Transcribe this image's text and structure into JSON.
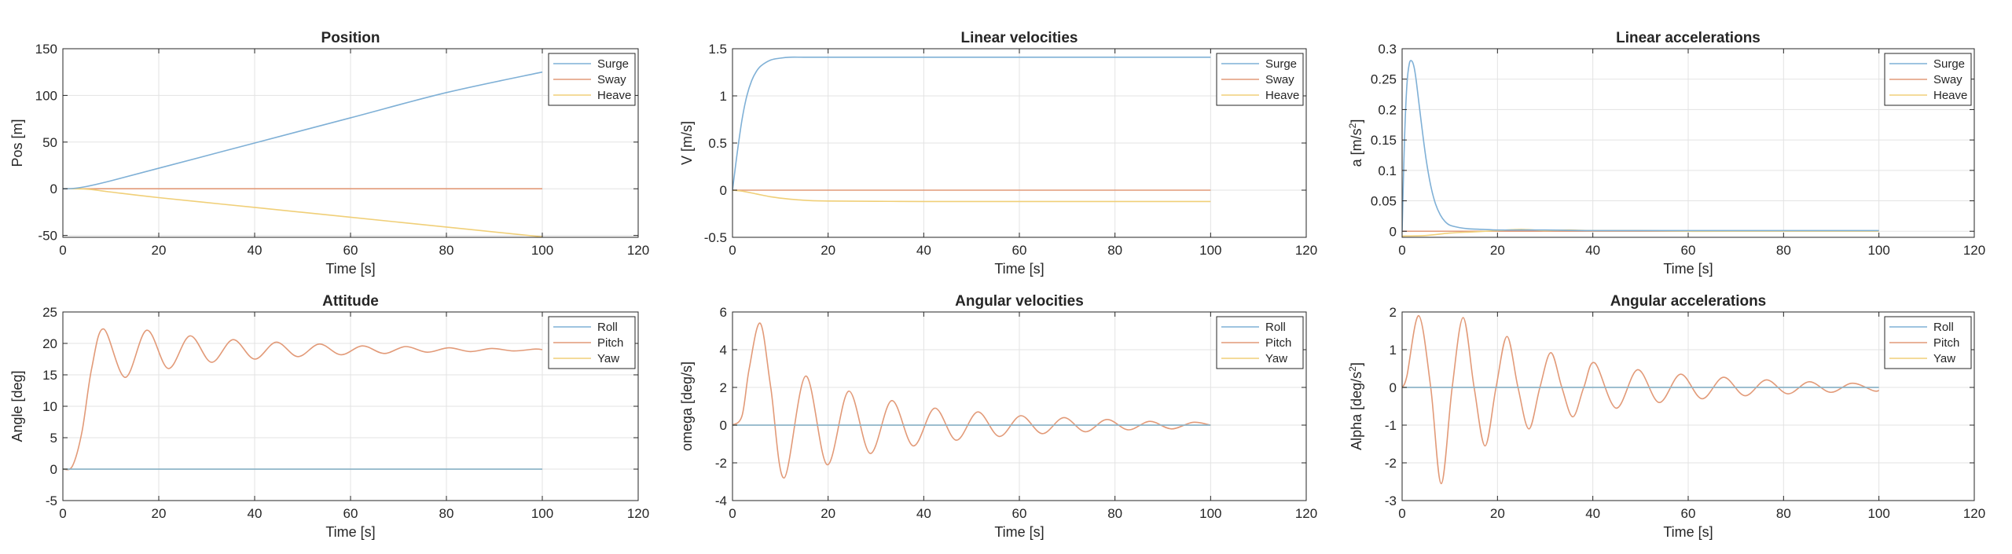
{
  "figure": {
    "colors": {
      "series1": "#0072BD",
      "series2": "#D95319",
      "series3": "#EDB120",
      "grid": "#e3e3e3",
      "axis": "#262626"
    },
    "series_colors_rendered": [
      "#7fb0d6",
      "#e29a78",
      "#f0cf78"
    ]
  },
  "chart_data": [
    {
      "type": "line",
      "title": "Position",
      "xlabel": "Time [s]",
      "ylabel": "Pos [m]",
      "xlim": [
        0,
        120
      ],
      "ylim": [
        -52,
        150
      ],
      "xticks": [
        "0",
        "20",
        "40",
        "60",
        "80",
        "100",
        "120"
      ],
      "yticks": [
        "-50",
        "0",
        "50",
        "100",
        "150"
      ],
      "grid": true,
      "legend_position": "top-right",
      "series": [
        {
          "name": "Surge",
          "x": [
            0,
            2,
            5,
            10,
            20,
            40,
            60,
            80,
            100
          ],
          "y": [
            0,
            0.3,
            2.5,
            8.5,
            22,
            49,
            76,
            103,
            125
          ]
        },
        {
          "name": "Sway",
          "x": [
            0,
            100
          ],
          "y": [
            0,
            0
          ]
        },
        {
          "name": "Heave",
          "x": [
            0,
            5,
            10,
            20,
            40,
            60,
            80,
            100
          ],
          "y": [
            0,
            -0.4,
            -3.5,
            -9.5,
            -20,
            -30.5,
            -41,
            -51.5
          ]
        }
      ]
    },
    {
      "type": "line",
      "title": "Linear velocities",
      "xlabel": "Time [s]",
      "ylabel": "V [m/s]",
      "xlim": [
        0,
        120
      ],
      "ylim": [
        -0.5,
        1.5
      ],
      "xticks": [
        "0",
        "20",
        "40",
        "60",
        "80",
        "100",
        "120"
      ],
      "yticks": [
        "-0.5",
        "0",
        "0.5",
        "1",
        "1.5"
      ],
      "grid": true,
      "legend_position": "top-right",
      "series": [
        {
          "name": "Surge",
          "x": [
            0,
            1,
            2,
            3,
            4,
            5,
            6,
            8,
            10,
            12,
            15,
            20,
            30,
            40,
            60,
            80,
            100
          ],
          "y": [
            0,
            0.4,
            0.75,
            1.0,
            1.16,
            1.26,
            1.32,
            1.38,
            1.4,
            1.41,
            1.41,
            1.41,
            1.41,
            1.41,
            1.41,
            1.41,
            1.41
          ]
        },
        {
          "name": "Sway",
          "x": [
            0,
            100
          ],
          "y": [
            0,
            0
          ]
        },
        {
          "name": "Heave",
          "x": [
            0,
            2,
            5,
            8,
            12,
            16,
            20,
            30,
            40,
            60,
            80,
            100
          ],
          "y": [
            0,
            -0.01,
            -0.04,
            -0.07,
            -0.095,
            -0.11,
            -0.115,
            -0.118,
            -0.12,
            -0.12,
            -0.12,
            -0.12
          ]
        }
      ]
    },
    {
      "type": "line",
      "title": "Linear accelerations",
      "xlabel": "Time [s]",
      "ylabel": "a [m/s²]",
      "xlim": [
        0,
        120
      ],
      "ylim": [
        -0.01,
        0.3
      ],
      "xticks": [
        "0",
        "20",
        "40",
        "60",
        "80",
        "100",
        "120"
      ],
      "yticks": [
        "0",
        "0.05",
        "0.1",
        "0.15",
        "0.2",
        "0.25",
        "0.3"
      ],
      "grid": true,
      "legend_position": "top-right",
      "series": [
        {
          "name": "Surge",
          "x": [
            0,
            0.5,
            1,
            1.5,
            2,
            2.5,
            3,
            4,
            5,
            6,
            7,
            8,
            9,
            10,
            12,
            14,
            17,
            20,
            25,
            30,
            40,
            60,
            100
          ],
          "y": [
            0,
            0.15,
            0.24,
            0.275,
            0.28,
            0.27,
            0.245,
            0.18,
            0.12,
            0.075,
            0.045,
            0.027,
            0.016,
            0.01,
            0.006,
            0.004,
            0.003,
            0.002,
            0.002,
            0.002,
            0.001,
            0.001,
            0.001
          ]
        },
        {
          "name": "Sway",
          "x": [
            0,
            100
          ],
          "y": [
            0,
            0
          ]
        },
        {
          "name": "Heave",
          "x": [
            0,
            5,
            10,
            15,
            20,
            25,
            30,
            35,
            40,
            50,
            60,
            70,
            80,
            90,
            100
          ],
          "y": [
            -0.008,
            -0.007,
            -0.003,
            -0.001,
            0.001,
            0.003,
            0.001,
            0.002,
            0.001,
            0.001,
            0.0,
            0.0,
            0.0,
            0.0,
            0.0
          ]
        }
      ]
    },
    {
      "type": "line",
      "title": "Attitude",
      "xlabel": "Time [s]",
      "ylabel": "Angle [deg]",
      "xlim": [
        0,
        120
      ],
      "ylim": [
        -5,
        25
      ],
      "xticks": [
        "0",
        "20",
        "40",
        "60",
        "80",
        "100",
        "120"
      ],
      "yticks": [
        "-5",
        "0",
        "5",
        "10",
        "15",
        "20",
        "25"
      ],
      "grid": true,
      "legend_position": "top-right",
      "series": [
        {
          "name": "Roll",
          "x": [
            0,
            100
          ],
          "y": [
            0,
            0
          ]
        },
        {
          "name": "Pitch",
          "x": [
            0,
            2,
            4,
            6,
            8.5,
            13,
            17.5,
            22,
            26.5,
            31,
            35.5,
            40,
            44.5,
            49,
            53.5,
            58,
            62.5,
            67,
            71.5,
            76,
            80.5,
            85,
            89.5,
            94,
            98.5,
            100
          ],
          "y": [
            0,
            0.5,
            6,
            16,
            22.3,
            14.6,
            22.1,
            16.0,
            21.2,
            17.0,
            20.6,
            17.5,
            20.2,
            17.9,
            19.9,
            18.2,
            19.6,
            18.4,
            19.5,
            18.6,
            19.3,
            18.7,
            19.2,
            18.8,
            19.1,
            19.0
          ]
        },
        {
          "name": "Yaw",
          "x": [
            0,
            100
          ],
          "y": [
            0,
            0
          ]
        }
      ]
    },
    {
      "type": "line",
      "title": "Angular velocities",
      "xlabel": "Time [s]",
      "ylabel": "omega [deg/s]",
      "xlim": [
        0,
        120
      ],
      "ylim": [
        -4,
        6
      ],
      "xticks": [
        "0",
        "20",
        "40",
        "60",
        "80",
        "100",
        "120"
      ],
      "yticks": [
        "-4",
        "-2",
        "0",
        "2",
        "4",
        "6"
      ],
      "grid": true,
      "legend_position": "top-right",
      "series": [
        {
          "name": "Roll",
          "x": [
            0,
            100
          ],
          "y": [
            0,
            0
          ]
        },
        {
          "name": "Pitch",
          "x": [
            0,
            2,
            3.5,
            5.8,
            8,
            10.8,
            15.3,
            19.8,
            24.3,
            28.8,
            33.3,
            37.8,
            42.3,
            46.8,
            51.3,
            55.8,
            60.3,
            64.8,
            69.3,
            73.8,
            78.3,
            82.8,
            87.3,
            91.8,
            96.3,
            100
          ],
          "y": [
            0,
            0.5,
            3,
            5.4,
            2,
            -2.8,
            2.6,
            -2.1,
            1.8,
            -1.5,
            1.3,
            -1.1,
            0.9,
            -0.8,
            0.7,
            -0.6,
            0.5,
            -0.45,
            0.4,
            -0.35,
            0.3,
            -0.25,
            0.2,
            -0.2,
            0.15,
            0.0
          ]
        },
        {
          "name": "Yaw",
          "x": [
            0,
            100
          ],
          "y": [
            0,
            0
          ]
        }
      ]
    },
    {
      "type": "line",
      "title": "Angular accelerations",
      "xlabel": "Time [s]",
      "ylabel": "Alpha [deg/s²]",
      "xlim": [
        0,
        120
      ],
      "ylim": [
        -3,
        2
      ],
      "xticks": [
        "0",
        "20",
        "40",
        "60",
        "80",
        "100",
        "120"
      ],
      "yticks": [
        "-3",
        "-2",
        "-1",
        "0",
        "1",
        "2"
      ],
      "grid": true,
      "legend_position": "top-right",
      "series": [
        {
          "name": "Roll",
          "x": [
            0,
            100
          ],
          "y": [
            0,
            0
          ]
        },
        {
          "name": "Pitch",
          "x": [
            0,
            1,
            3.5,
            6,
            8.2,
            10.5,
            12.8,
            15.1,
            17.4,
            19.7,
            22,
            24.3,
            26.6,
            28.9,
            31.2,
            33.5,
            35.8,
            38.1,
            40.4,
            44.9,
            49.4,
            53.9,
            58.4,
            62.9,
            67.4,
            71.9,
            76.4,
            80.9,
            85.4,
            89.9,
            94.4,
            98.9,
            100
          ],
          "y": [
            0,
            0.3,
            1.9,
            0,
            -2.55,
            0,
            1.85,
            0,
            -1.55,
            0,
            1.35,
            0,
            -1.1,
            0,
            0.92,
            0,
            -0.78,
            0,
            0.65,
            -0.55,
            0.47,
            -0.4,
            0.35,
            -0.3,
            0.27,
            -0.22,
            0.2,
            -0.17,
            0.15,
            -0.13,
            0.11,
            -0.09,
            -0.08
          ]
        },
        {
          "name": "Yaw",
          "x": [
            0,
            100
          ],
          "y": [
            0,
            0
          ]
        }
      ]
    }
  ]
}
